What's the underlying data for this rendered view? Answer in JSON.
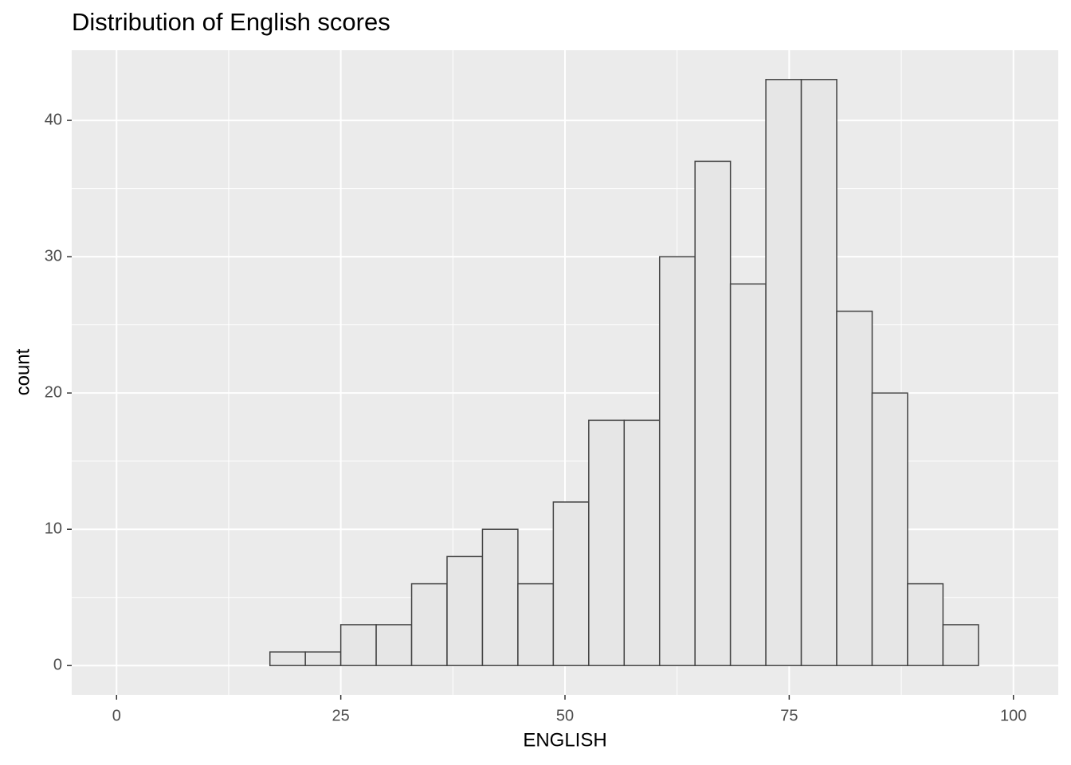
{
  "chart_data": {
    "type": "histogram",
    "title": "Distribution of English scores",
    "x_label": "ENGLISH",
    "y_label": "count",
    "bins": [
      17.1,
      21.05,
      25,
      28.95,
      32.9,
      36.85,
      40.8,
      44.75,
      48.7,
      52.65,
      56.6,
      60.55,
      64.5,
      68.45,
      72.4,
      76.35,
      80.3,
      84.25,
      88.2,
      92.15,
      96.1
    ],
    "counts": [
      1,
      1,
      3,
      3,
      6,
      8,
      10,
      6,
      12,
      18,
      18,
      30,
      37,
      28,
      43,
      43,
      26,
      20,
      6,
      3
    ],
    "color": "#e6e6e6",
    "edge_color": "#444444",
    "xlim": [
      -5,
      105
    ],
    "xticks": [
      0,
      25,
      50,
      75,
      100
    ],
    "ylim": [
      -2.15,
      45.15
    ],
    "yticks": [
      0,
      10,
      20,
      30,
      40
    ],
    "grid": true
  }
}
